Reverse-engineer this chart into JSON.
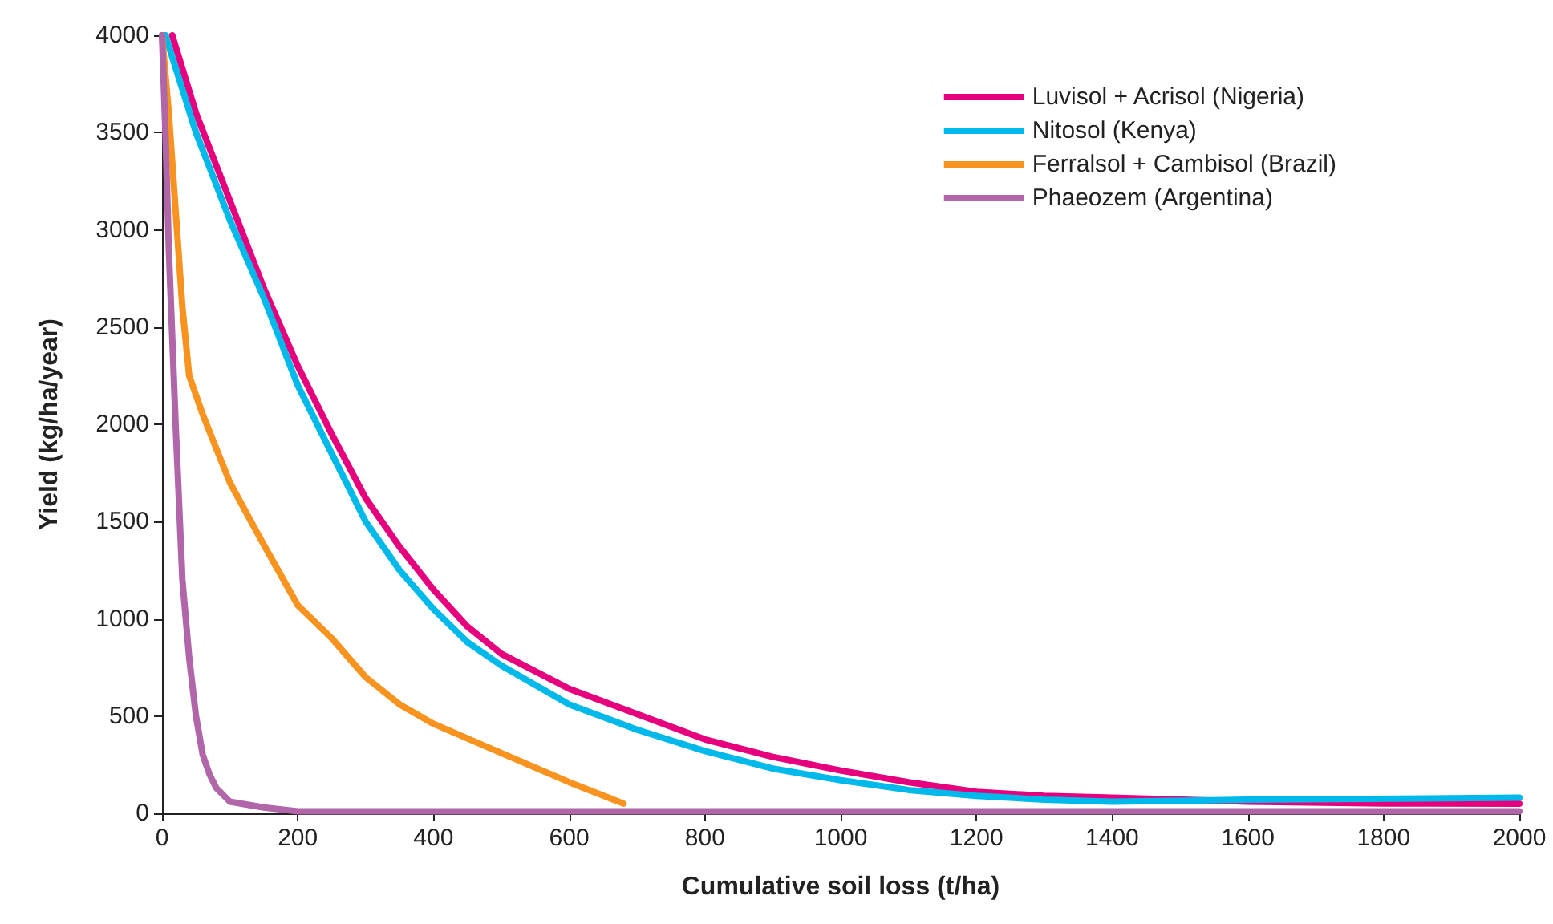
{
  "chart_data": {
    "type": "line",
    "xlabel": "Cumulative soil loss (t/ha)",
    "ylabel": "Yield (kg/ha/year)",
    "xlim": [
      0,
      2000
    ],
    "xticks": [
      0,
      200,
      400,
      600,
      800,
      1000,
      1200,
      1400,
      1600,
      1800,
      2000
    ],
    "ylim": [
      0,
      4000
    ],
    "yticks": [
      0,
      500,
      1000,
      1500,
      2000,
      2500,
      3000,
      3500,
      4000
    ],
    "grid": false,
    "legend": "top right",
    "marker": "none",
    "line_style": "solid",
    "series": [
      {
        "name": "Luvisol + Acrisol (Nigeria)",
        "color": "#e6007e",
        "x": [
          15,
          50,
          100,
          150,
          200,
          250,
          300,
          350,
          400,
          450,
          500,
          600,
          700,
          800,
          900,
          1000,
          1100,
          1200,
          1300,
          1400,
          1600,
          1800,
          2000
        ],
        "values": [
          4000,
          3600,
          3150,
          2700,
          2300,
          1950,
          1620,
          1370,
          1150,
          960,
          820,
          640,
          510,
          380,
          290,
          220,
          160,
          110,
          90,
          80,
          60,
          50,
          50
        ]
      },
      {
        "name": "Nitosol (Kenya)",
        "color": "#00b9eb",
        "x": [
          5,
          50,
          100,
          150,
          180,
          200,
          250,
          300,
          350,
          400,
          450,
          500,
          600,
          700,
          800,
          900,
          1000,
          1100,
          1200,
          1300,
          1400,
          1600,
          2000
        ],
        "values": [
          4000,
          3500,
          3050,
          2650,
          2380,
          2200,
          1850,
          1500,
          1250,
          1050,
          880,
          760,
          560,
          430,
          320,
          230,
          170,
          120,
          90,
          70,
          60,
          70,
          80
        ]
      },
      {
        "name": "Ferralsol + Cambisol (Brazil)",
        "color": "#f7931e",
        "x": [
          0,
          10,
          20,
          30,
          40,
          60,
          100,
          150,
          200,
          250,
          300,
          350,
          400,
          500,
          600,
          680
        ],
        "values": [
          4000,
          3600,
          3100,
          2600,
          2250,
          2050,
          1700,
          1380,
          1070,
          900,
          700,
          560,
          460,
          310,
          160,
          50
        ]
      },
      {
        "name": "Phaeozem (Argentina)",
        "color": "#b066a8",
        "x": [
          0,
          5,
          10,
          20,
          30,
          40,
          50,
          60,
          70,
          80,
          100,
          150,
          200,
          300,
          2000
        ],
        "values": [
          4000,
          3500,
          2900,
          2000,
          1200,
          800,
          500,
          300,
          200,
          130,
          60,
          30,
          10,
          10,
          10
        ]
      }
    ]
  }
}
